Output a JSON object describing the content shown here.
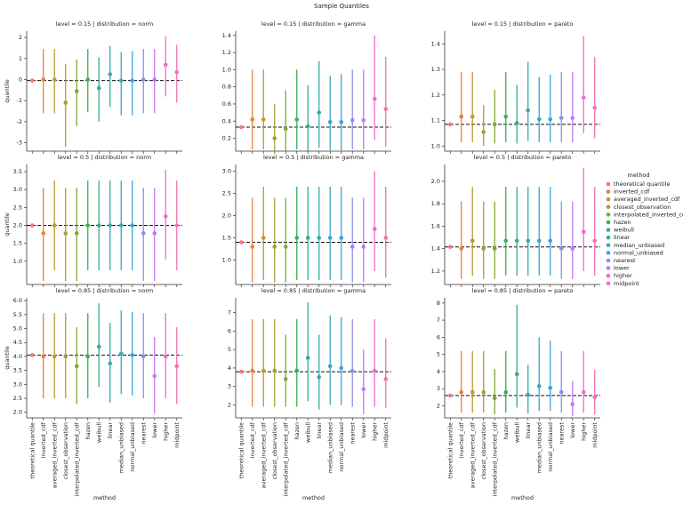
{
  "title": "Sample Quantiles",
  "legend_title": "method",
  "categories": [
    "theoretical quantile",
    "inverted_cdf",
    "averaged_inverted_cdf",
    "closest_observation",
    "interpolated_inverted_cdf",
    "hazen",
    "weibull",
    "linear",
    "median_unbiased",
    "normal_unbiased",
    "nearest",
    "lower",
    "higher",
    "midpoint"
  ],
  "colors": [
    "#f77189",
    "#e5823a",
    "#c39532",
    "#a69e31",
    "#7fa831",
    "#3bb04e",
    "#35ad8c",
    "#36aba5",
    "#38a9c0",
    "#3ba3e4",
    "#8e8cf4",
    "#c476f4",
    "#ee69d7",
    "#f56fb1"
  ],
  "chart_data": [
    {
      "type": "errorbar",
      "title": "level = 0.15 | distribution = norm",
      "ylabel": "quantile",
      "values": [
        -0.05,
        0.0,
        0.0,
        -1.1,
        -0.55,
        0.0,
        -0.4,
        0.25,
        -0.05,
        -0.05,
        0.0,
        0.0,
        0.7,
        0.35
      ],
      "lower": [
        null,
        -1.6,
        -1.6,
        -3.2,
        -2.2,
        -1.55,
        -2.0,
        -1.3,
        -1.7,
        -1.7,
        -1.6,
        -1.6,
        -0.8,
        -1.1
      ],
      "upper": [
        null,
        1.45,
        1.45,
        0.75,
        0.95,
        1.45,
        1.05,
        1.6,
        1.3,
        1.35,
        1.45,
        1.45,
        2.05,
        1.65
      ],
      "reference": -0.05,
      "ylim": [
        -3.4,
        2.3
      ],
      "yticks": [
        -3,
        -2,
        -1,
        0,
        1,
        2
      ]
    },
    {
      "type": "errorbar",
      "title": "level = 0.15 | distribution = gamma",
      "values": [
        0.33,
        0.42,
        0.42,
        0.2,
        0.31,
        0.42,
        0.34,
        0.5,
        0.39,
        0.39,
        0.41,
        0.41,
        0.66,
        0.54
      ],
      "lower": [
        null,
        0.07,
        0.07,
        0.03,
        0.05,
        0.07,
        0.05,
        0.09,
        0.06,
        0.06,
        0.07,
        0.07,
        0.18,
        0.1
      ],
      "upper": [
        null,
        1.0,
        1.0,
        0.6,
        0.76,
        1.0,
        0.82,
        1.1,
        0.93,
        0.95,
        1.0,
        1.0,
        1.4,
        1.15
      ],
      "reference": 0.33,
      "ylim": [
        0.05,
        1.45
      ],
      "yticks": [
        0.2,
        0.4,
        0.6,
        0.8,
        {
          "value": 1,
          "label": "1.0"
        },
        1.2,
        1.4
      ]
    },
    {
      "type": "errorbar",
      "title": "level = 0.15 | distribution = pareto",
      "values": [
        1.085,
        1.115,
        1.115,
        1.055,
        1.085,
        1.115,
        1.09,
        1.14,
        1.105,
        1.105,
        1.11,
        1.11,
        1.19,
        1.15
      ],
      "lower": [
        null,
        1.015,
        1.015,
        1.0,
        1.01,
        1.015,
        1.01,
        1.02,
        1.015,
        1.015,
        1.015,
        1.015,
        1.05,
        1.03
      ],
      "upper": [
        null,
        1.29,
        1.29,
        1.16,
        1.22,
        1.29,
        1.24,
        1.33,
        1.27,
        1.28,
        1.29,
        1.29,
        1.43,
        1.35
      ],
      "reference": 1.085,
      "ylim": [
        0.98,
        1.45
      ],
      "yticks": [
        {
          "value": 1,
          "label": "1.0"
        },
        1.1,
        1.2,
        1.3,
        1.4
      ]
    },
    {
      "type": "errorbar",
      "title": "level = 0.5 | distribution = norm",
      "ylabel": "quantile",
      "values": [
        2.0,
        1.78,
        2.0,
        1.78,
        1.78,
        2.0,
        2.0,
        2.0,
        2.0,
        2.0,
        1.78,
        1.78,
        2.25,
        2.0
      ],
      "lower": [
        null,
        0.45,
        0.75,
        0.45,
        0.45,
        0.75,
        0.75,
        0.75,
        0.75,
        0.75,
        0.45,
        0.45,
        1.05,
        0.75
      ],
      "upper": [
        null,
        3.05,
        3.25,
        3.05,
        3.05,
        3.25,
        3.25,
        3.25,
        3.25,
        3.25,
        3.05,
        3.05,
        3.55,
        3.25
      ],
      "reference": 2.0,
      "ylim": [
        0.35,
        3.7
      ],
      "yticks": [
        {
          "value": 1,
          "label": "1.0"
        },
        1.5,
        {
          "value": 2,
          "label": "2.0"
        },
        2.5,
        {
          "value": 3,
          "label": "3.0"
        },
        3.5
      ]
    },
    {
      "type": "errorbar",
      "title": "level = 0.5 | distribution = gamma",
      "values": [
        1.4,
        1.3,
        1.5,
        1.3,
        1.3,
        1.5,
        1.5,
        1.5,
        1.5,
        1.5,
        1.3,
        1.3,
        1.7,
        1.5
      ],
      "lower": [
        null,
        0.5,
        0.55,
        0.5,
        0.5,
        0.55,
        0.55,
        0.55,
        0.55,
        0.55,
        0.5,
        0.5,
        0.75,
        0.6
      ],
      "upper": [
        null,
        2.4,
        2.65,
        2.4,
        2.4,
        2.65,
        2.65,
        2.65,
        2.65,
        2.65,
        2.4,
        2.4,
        3.0,
        2.65
      ],
      "reference": 1.4,
      "ylim": [
        0.45,
        3.15
      ],
      "yticks": [
        {
          "value": 1,
          "label": "1.0"
        },
        1.5,
        {
          "value": 2,
          "label": "2.0"
        },
        2.5,
        {
          "value": 3,
          "label": "3.0"
        }
      ]
    },
    {
      "type": "errorbar",
      "title": "level = 0.5 | distribution = pareto",
      "values": [
        1.415,
        1.4,
        1.47,
        1.4,
        1.4,
        1.47,
        1.47,
        1.47,
        1.47,
        1.47,
        1.4,
        1.4,
        1.55,
        1.47
      ],
      "lower": [
        null,
        1.13,
        1.16,
        1.13,
        1.13,
        1.16,
        1.16,
        1.16,
        1.16,
        1.16,
        1.13,
        1.13,
        1.2,
        1.16
      ],
      "upper": [
        null,
        1.82,
        1.95,
        1.82,
        1.82,
        1.95,
        1.95,
        1.95,
        1.95,
        1.95,
        1.82,
        1.82,
        2.12,
        1.95
      ],
      "reference": 1.415,
      "ylim": [
        1.08,
        2.15
      ],
      "yticks": [
        1.2,
        1.4,
        1.6,
        1.8,
        {
          "value": 2,
          "label": "2.0"
        }
      ]
    },
    {
      "type": "errorbar",
      "title": "level = 0.85 | distribution = norm",
      "ylabel": "quantile",
      "xlabel": "method",
      "values": [
        4.05,
        4.0,
        4.0,
        4.0,
        3.65,
        4.0,
        4.35,
        3.75,
        4.1,
        4.05,
        4.0,
        3.3,
        4.0,
        3.65
      ],
      "lower": [
        null,
        2.5,
        2.5,
        2.5,
        2.3,
        2.5,
        2.9,
        2.35,
        2.65,
        2.6,
        2.5,
        1.95,
        2.5,
        2.3
      ],
      "upper": [
        null,
        5.55,
        5.55,
        5.55,
        5.05,
        5.55,
        5.9,
        5.2,
        5.65,
        5.6,
        5.55,
        4.7,
        5.55,
        5.05
      ],
      "reference": 4.05,
      "ylim": [
        1.8,
        6.1
      ],
      "yticks": [
        {
          "value": 2,
          "label": "2.0"
        },
        2.5,
        {
          "value": 3,
          "label": "3.0"
        },
        3.5,
        {
          "value": 4,
          "label": "4.0"
        },
        4.5,
        {
          "value": 5,
          "label": "5.0"
        },
        5.5,
        {
          "value": 6,
          "label": "6.0"
        }
      ]
    },
    {
      "type": "errorbar",
      "title": "level = 0.85 | distribution = gamma",
      "xlabel": "method",
      "values": [
        3.8,
        3.85,
        3.85,
        3.85,
        3.4,
        3.85,
        4.55,
        3.5,
        4.1,
        4.0,
        3.85,
        2.85,
        3.85,
        3.4
      ],
      "lower": [
        null,
        1.9,
        1.9,
        1.9,
        1.9,
        1.9,
        2.2,
        1.75,
        2.0,
        2.0,
        1.9,
        1.5,
        1.9,
        1.85
      ],
      "upper": [
        null,
        6.65,
        6.65,
        6.65,
        5.8,
        6.65,
        7.55,
        5.8,
        6.85,
        6.75,
        6.65,
        5.0,
        6.65,
        5.6
      ],
      "reference": 3.8,
      "ylim": [
        1.3,
        7.8
      ],
      "yticks": [
        2,
        3,
        4,
        5,
        6,
        7
      ]
    },
    {
      "type": "errorbar",
      "title": "level = 0.85 | distribution = pareto",
      "xlabel": "method",
      "values": [
        2.6,
        2.8,
        2.8,
        2.8,
        2.45,
        2.8,
        3.85,
        2.65,
        3.15,
        3.05,
        2.8,
        2.1,
        2.8,
        2.5
      ],
      "lower": [
        null,
        1.6,
        1.6,
        1.6,
        1.5,
        1.6,
        1.9,
        1.55,
        1.7,
        1.7,
        1.6,
        1.4,
        1.6,
        1.5
      ],
      "upper": [
        null,
        5.2,
        5.2,
        5.2,
        4.15,
        5.2,
        7.9,
        4.4,
        6.0,
        5.8,
        5.2,
        3.45,
        5.2,
        4.1
      ],
      "reference": 2.6,
      "ylim": [
        1.3,
        8.3
      ],
      "yticks": [
        2,
        3,
        4,
        5,
        6,
        7,
        8
      ]
    }
  ]
}
